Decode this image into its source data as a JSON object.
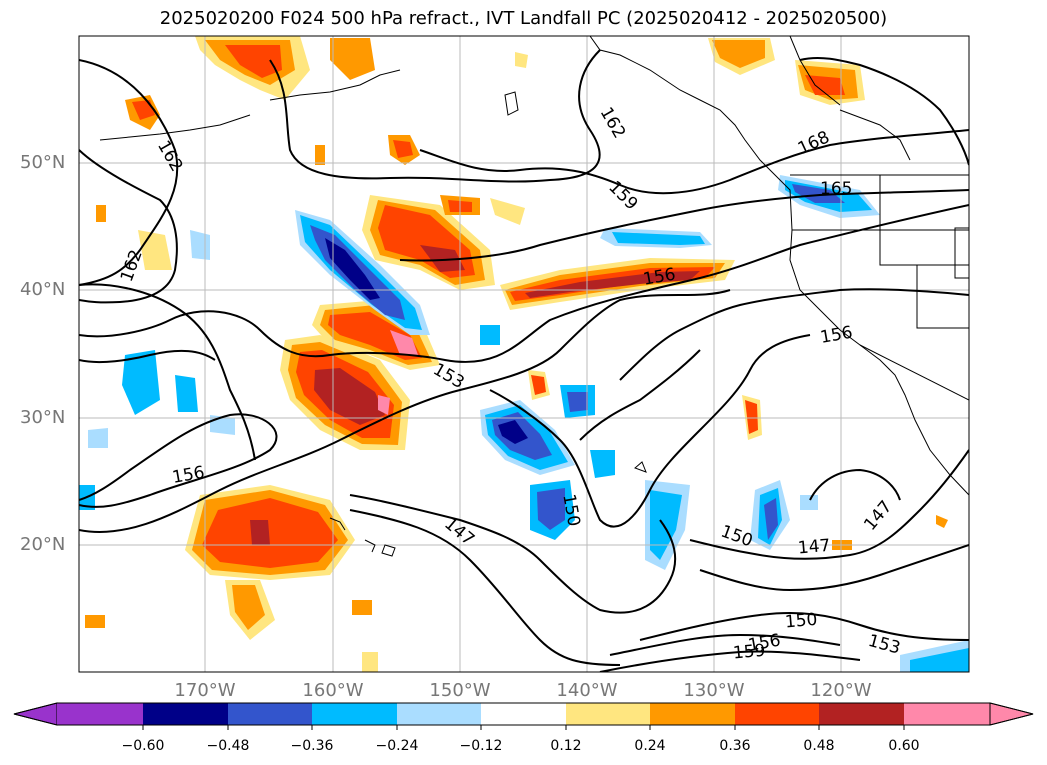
{
  "title": "2025020200 F024 500 hPa refract., IVT Landfall PC (2025020412 - 2025020500)",
  "lat_labels": [
    "50°N",
    "40°N",
    "30°N",
    "20°N"
  ],
  "lon_labels": [
    "170°W",
    "160°W",
    "150°W",
    "140°W",
    "130°W",
    "120°W"
  ],
  "contour_labels": [
    "162",
    "162",
    "162",
    "159",
    "168",
    "165",
    "156",
    "156",
    "153",
    "156",
    "150",
    "147",
    "150",
    "147",
    "147",
    "150",
    "156",
    "159",
    "153"
  ],
  "colorbar": {
    "colors": [
      "#9933cc",
      "#000088",
      "#3355cc",
      "#00bbff",
      "#aaddff",
      "#ffffff",
      "#ffe680",
      "#ff9900",
      "#ff4400",
      "#b22222",
      "#ff88aa"
    ],
    "tick_labels": [
      "−0.60",
      "−0.48",
      "−0.36",
      "−0.24",
      "−0.12",
      "0.12",
      "0.24",
      "0.36",
      "0.48",
      "0.60"
    ]
  }
}
